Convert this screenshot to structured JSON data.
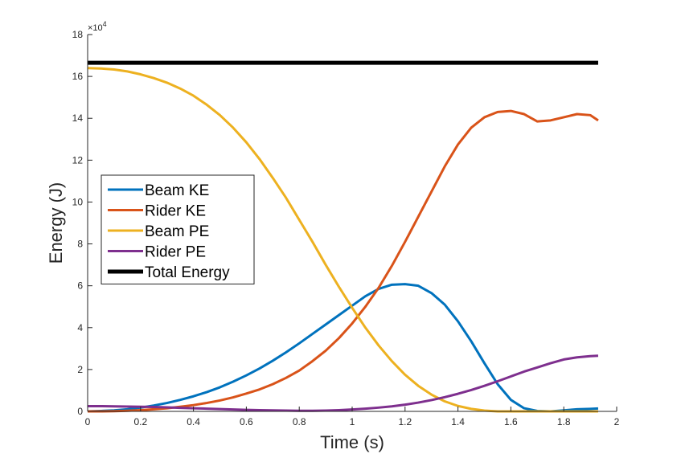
{
  "chart_data": {
    "type": "line",
    "xlabel": "Time (s)",
    "ylabel": "Energy (J)",
    "xlim": [
      0,
      2
    ],
    "ylim": [
      0,
      18
    ],
    "y_multiplier_label": "×10",
    "y_multiplier_exponent": "4",
    "xticks": [
      0,
      0.2,
      0.4,
      0.6,
      0.8,
      1,
      1.2,
      1.4,
      1.6,
      1.8,
      2
    ],
    "xtick_labels": [
      "0",
      "0.2",
      "0.4",
      "0.6",
      "0.8",
      "1",
      "1.2",
      "1.4",
      "1.6",
      "1.8",
      "2"
    ],
    "yticks": [
      0,
      2,
      4,
      6,
      8,
      10,
      12,
      14,
      16,
      18
    ],
    "ytick_labels": [
      "0",
      "2",
      "4",
      "6",
      "8",
      "10",
      "12",
      "14",
      "16",
      "18"
    ],
    "grid": false,
    "legend_position": "left-middle",
    "x": [
      0,
      0.05,
      0.1,
      0.15,
      0.2,
      0.25,
      0.3,
      0.35,
      0.4,
      0.45,
      0.5,
      0.55,
      0.6,
      0.65,
      0.7,
      0.75,
      0.8,
      0.85,
      0.9,
      0.95,
      1.0,
      1.05,
      1.1,
      1.15,
      1.2,
      1.25,
      1.3,
      1.35,
      1.4,
      1.45,
      1.5,
      1.55,
      1.6,
      1.65,
      1.7,
      1.75,
      1.8,
      1.85,
      1.9,
      1.93
    ],
    "series": [
      {
        "name": "Beam KE",
        "color": "#0072BD",
        "values": [
          0.0,
          0.02,
          0.05,
          0.1,
          0.18,
          0.28,
          0.4,
          0.55,
          0.72,
          0.92,
          1.15,
          1.42,
          1.72,
          2.05,
          2.42,
          2.82,
          3.25,
          3.7,
          4.15,
          4.6,
          5.05,
          5.5,
          5.85,
          6.05,
          6.08,
          6.0,
          5.65,
          5.1,
          4.3,
          3.35,
          2.3,
          1.3,
          0.55,
          0.15,
          0.02,
          0.0,
          0.05,
          0.1,
          0.12,
          0.14
        ]
      },
      {
        "name": "Rider KE",
        "color": "#D95319",
        "values": [
          0.0,
          0.0,
          0.01,
          0.03,
          0.06,
          0.1,
          0.15,
          0.22,
          0.3,
          0.4,
          0.52,
          0.67,
          0.85,
          1.05,
          1.3,
          1.6,
          1.95,
          2.4,
          2.9,
          3.5,
          4.2,
          5.0,
          5.9,
          6.95,
          8.1,
          9.3,
          10.5,
          11.7,
          12.75,
          13.55,
          14.05,
          14.3,
          14.35,
          14.2,
          13.85,
          13.9,
          14.05,
          14.2,
          14.15,
          13.9
        ]
      },
      {
        "name": "Beam PE",
        "color": "#EDB120",
        "values": [
          16.4,
          16.38,
          16.33,
          16.24,
          16.1,
          15.92,
          15.7,
          15.42,
          15.08,
          14.65,
          14.15,
          13.55,
          12.85,
          12.05,
          11.15,
          10.2,
          9.15,
          8.1,
          7.0,
          5.95,
          4.95,
          4.0,
          3.15,
          2.4,
          1.75,
          1.22,
          0.8,
          0.48,
          0.26,
          0.12,
          0.04,
          0.0,
          0.0,
          0.0,
          0.0,
          0.0,
          0.0,
          0.0,
          0.0,
          0.0
        ]
      },
      {
        "name": "Rider PE",
        "color": "#7E2F8E",
        "values": [
          0.25,
          0.25,
          0.24,
          0.23,
          0.22,
          0.21,
          0.19,
          0.17,
          0.15,
          0.13,
          0.11,
          0.09,
          0.07,
          0.06,
          0.05,
          0.04,
          0.03,
          0.03,
          0.04,
          0.06,
          0.09,
          0.13,
          0.18,
          0.24,
          0.32,
          0.42,
          0.54,
          0.68,
          0.84,
          1.02,
          1.22,
          1.44,
          1.67,
          1.9,
          2.1,
          2.3,
          2.48,
          2.58,
          2.64,
          2.66
        ]
      },
      {
        "name": "Total Energy",
        "color": "#000000",
        "values": [
          16.65,
          16.65,
          16.65,
          16.65,
          16.65,
          16.65,
          16.65,
          16.65,
          16.65,
          16.65,
          16.65,
          16.65,
          16.65,
          16.65,
          16.65,
          16.65,
          16.65,
          16.65,
          16.65,
          16.65,
          16.65,
          16.65,
          16.65,
          16.65,
          16.65,
          16.65,
          16.65,
          16.65,
          16.65,
          16.65,
          16.65,
          16.65,
          16.65,
          16.65,
          16.65,
          16.65,
          16.65,
          16.65,
          16.65,
          16.65
        ]
      }
    ]
  }
}
